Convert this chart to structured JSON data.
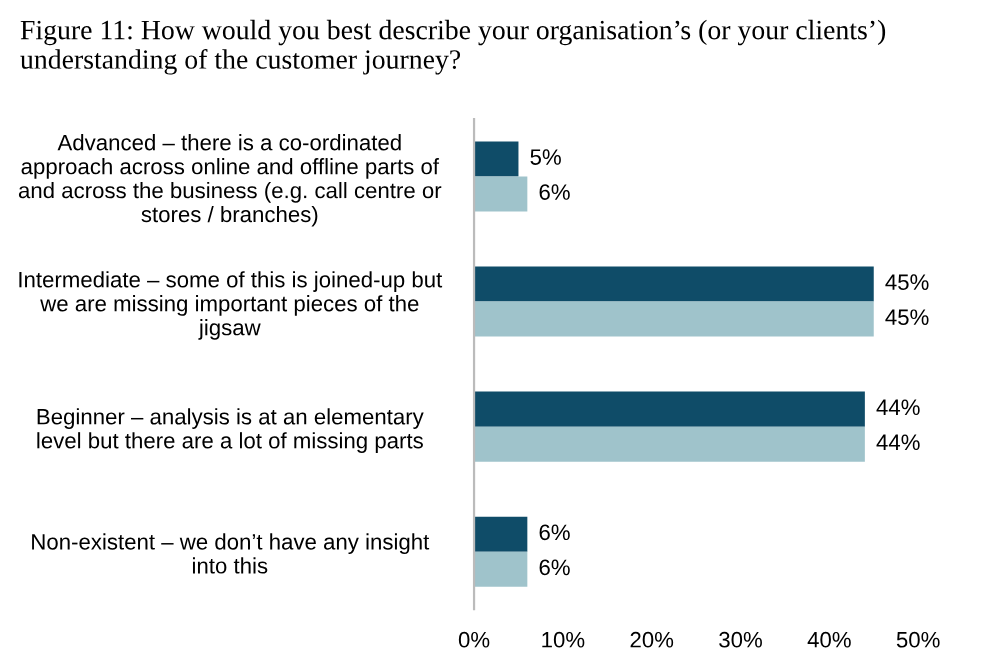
{
  "chart_data": {
    "type": "bar",
    "orientation": "horizontal",
    "title": "Figure 11: How would you best describe your organisation’s (or your clients’)\nunderstanding of the customer journey?",
    "categories": [
      "Advanced – there is a co-ordinated\napproach across online and offline parts of\nand across the business (e.g. call centre or\nstores / branches)",
      "Intermediate – some of this is joined-up but\nwe are missing important pieces of the\njigsaw",
      "Beginner – analysis is at an elementary\nlevel but there are a lot of missing parts",
      "Non-existent – we don’t have any insight\ninto this"
    ],
    "series": [
      {
        "color": "#0f4c68",
        "values": [
          5,
          45,
          44,
          6
        ],
        "value_labels": [
          "5%",
          "45%",
          "44%",
          "6%"
        ]
      },
      {
        "color": "#9fc3cb",
        "values": [
          6,
          45,
          44,
          6
        ],
        "value_labels": [
          "6%",
          "45%",
          "44%",
          "6%"
        ]
      }
    ],
    "xlim": [
      0,
      50
    ],
    "xticks": [
      {
        "value": 0,
        "label": "0%"
      },
      {
        "value": 10,
        "label": "10%"
      },
      {
        "value": 20,
        "label": "20%"
      },
      {
        "value": 30,
        "label": "30%"
      },
      {
        "value": 40,
        "label": "40%"
      },
      {
        "value": 50,
        "label": "50%"
      }
    ],
    "grid": false,
    "legend": false
  }
}
